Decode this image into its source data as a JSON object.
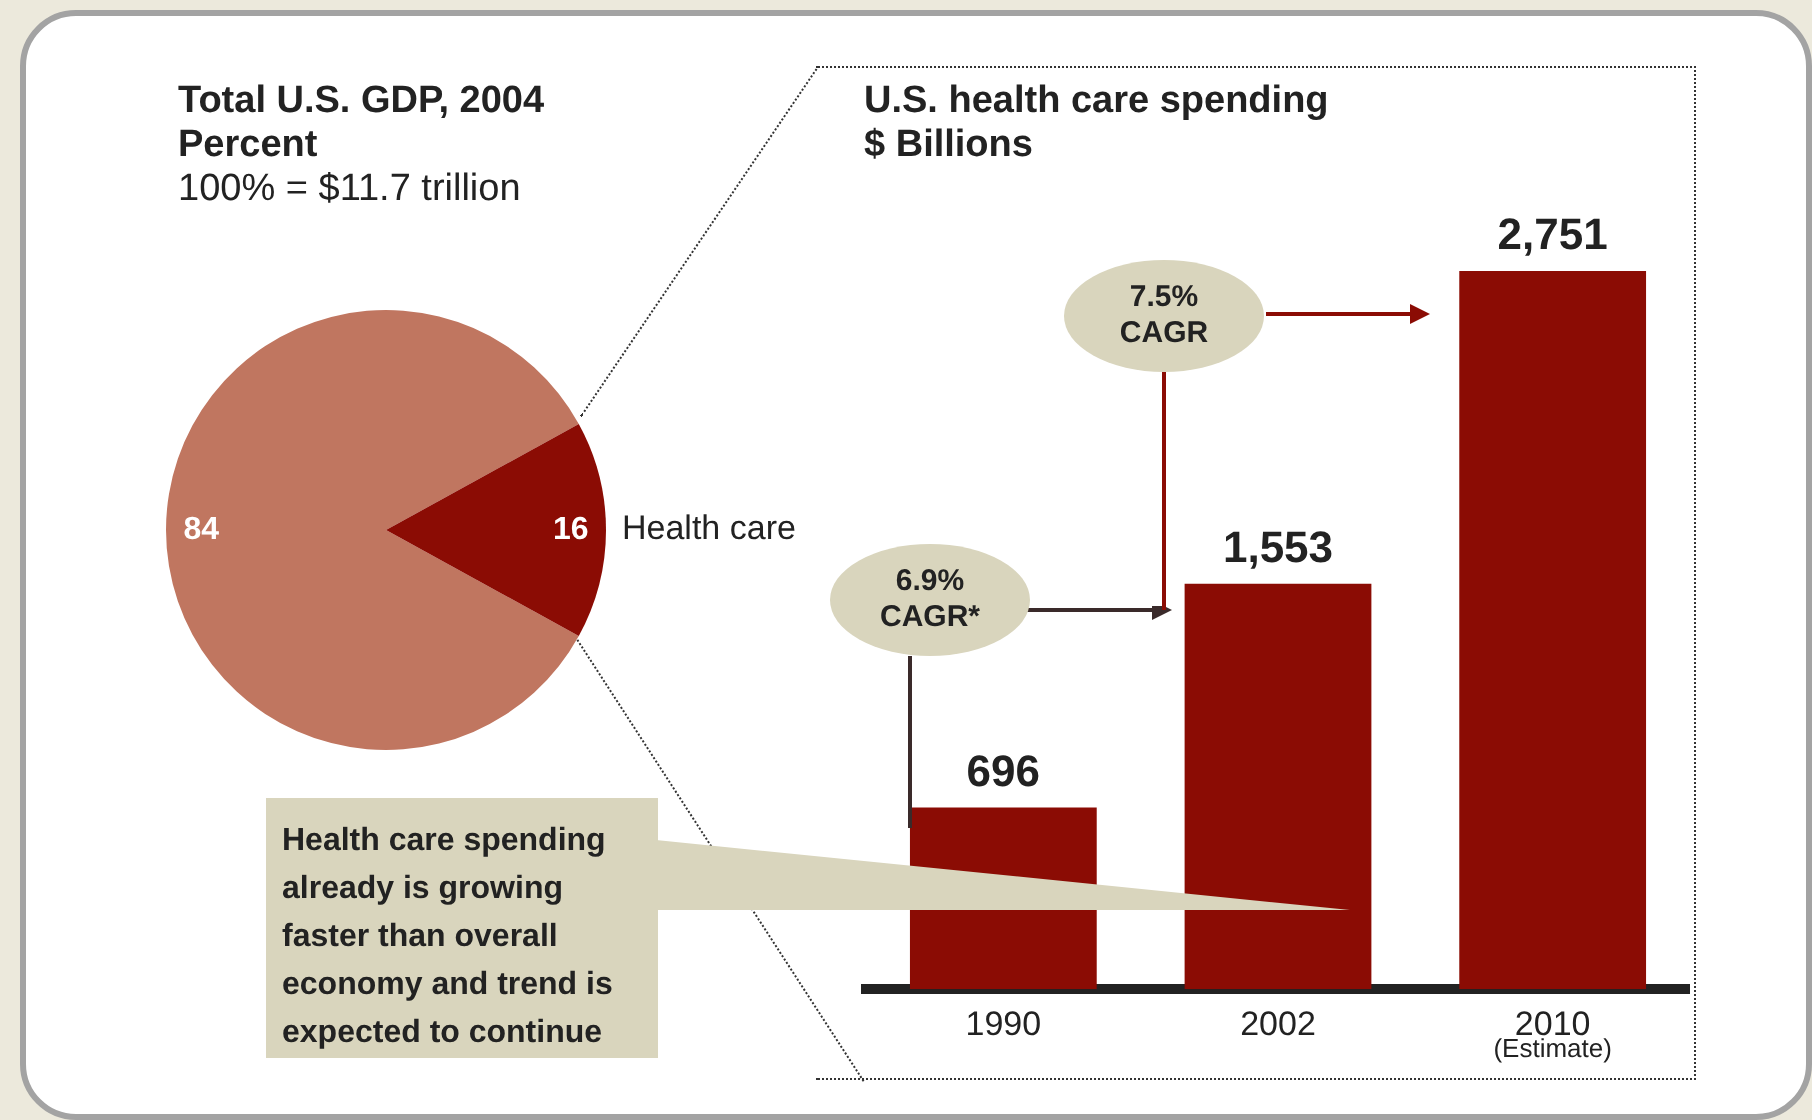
{
  "chart_data": [
    {
      "type": "pie",
      "title": "Total U.S. GDP, 2004",
      "subtitle": "Percent",
      "annotations": [
        "100% = $11.7 trillion"
      ],
      "categories": [
        null,
        "Health care"
      ],
      "values": [
        84,
        16
      ],
      "colors": [
        "#c07660",
        "#8b0c04"
      ],
      "data_labels": true
    },
    {
      "type": "bar",
      "title": "U.S. health care spending",
      "subtitle": "$ Billions",
      "categories": [
        "1990",
        "2002",
        "2010"
      ],
      "values": [
        696,
        1553,
        2751
      ],
      "color": "#8b0c04",
      "value_labels": [
        "696",
        "1,553",
        "2,751"
      ],
      "annotations": [
        "6.9% CAGR*",
        "7.5% CAGR",
        "(Estimate)",
        "Health care spending already is growing faster than overall economy and trend is expected to continue"
      ]
    }
  ]
}
